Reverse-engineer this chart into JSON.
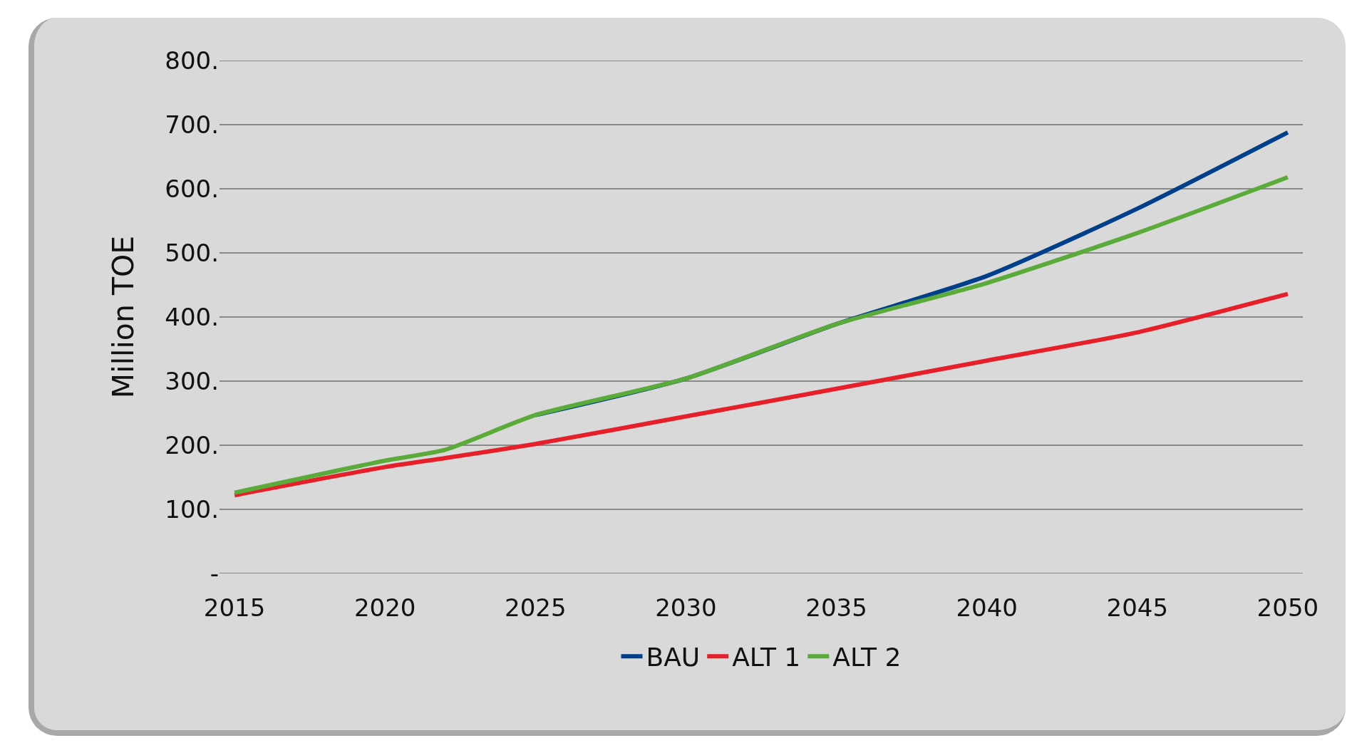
{
  "chart_data": {
    "type": "line",
    "ylabel": "Million TOE",
    "x": [
      2015,
      2020,
      2022,
      2025,
      2030,
      2035,
      2040,
      2045,
      2050
    ],
    "series": [
      {
        "name": "BAU",
        "color": "#003f8a",
        "values": [
          null,
          null,
          null,
          247,
          304,
          389,
          464,
          569,
          688
        ]
      },
      {
        "name": "ALT 1",
        "color": "#e5202a",
        "values": [
          122,
          166,
          180,
          202,
          245,
          288,
          332,
          376,
          436
        ]
      },
      {
        "name": "ALT 2",
        "color": "#5aab3a",
        "values": [
          126,
          176,
          193,
          247,
          304,
          389,
          453,
          531,
          618
        ]
      }
    ],
    "xlim": [
      2014.5,
      2050.5
    ],
    "xticks": [
      2015,
      2020,
      2025,
      2030,
      2035,
      2040,
      2045,
      2050
    ],
    "ylim": [
      0,
      800
    ],
    "yticks": [
      {
        "value": 0,
        "label": "-"
      },
      {
        "value": 100,
        "label": "100."
      },
      {
        "value": 200,
        "label": "200."
      },
      {
        "value": 300,
        "label": "300."
      },
      {
        "value": 400,
        "label": "400."
      },
      {
        "value": 500,
        "label": "500."
      },
      {
        "value": 600,
        "label": "600."
      },
      {
        "value": 700,
        "label": "700."
      },
      {
        "value": 800,
        "label": "800."
      }
    ],
    "grid": "y",
    "legend": "bottom",
    "marker": "none",
    "line_style": "solid"
  }
}
